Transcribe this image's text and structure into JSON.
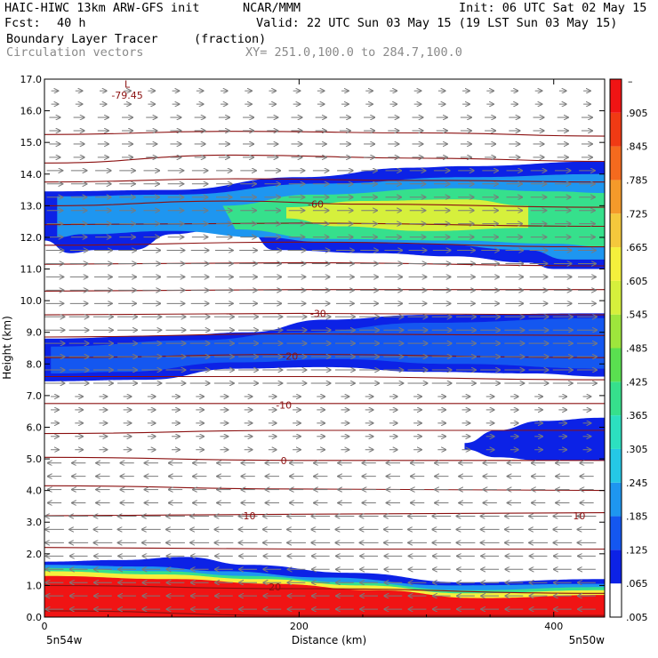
{
  "header": {
    "model": "HAIC-HIWC 13km ARW-GFS init",
    "org": "NCAR/MMM",
    "init": "Init: 06 UTC Sat 02 May 15",
    "fcst_label": "Fcst:",
    "fcst_value": "40 h",
    "valid": "Valid: 22 UTC Sun 03 May 15 (19 LST Sun 03 May 15)",
    "field": "Boundary Layer Tracer",
    "units": "(fraction)",
    "overlay": "Circulation vectors",
    "xy": "XY= 251.0,100.0 to 284.7,100.0"
  },
  "colors": {
    "axis": "#000000",
    "contour": "#8b1010",
    "vector": "#7a7a7a",
    "scale": [
      "#ffffff",
      "#0c22e6",
      "#1457f0",
      "#1e96f0",
      "#25c8e6",
      "#2ce0c0",
      "#36e08c",
      "#5ae050",
      "#9ee63c",
      "#d6f03c",
      "#f5f03c",
      "#f5c83c",
      "#f59a2a",
      "#f56a1e",
      "#f03a14",
      "#f01414"
    ]
  },
  "chart_data": {
    "type": "heatmap",
    "title": "Boundary Layer Tracer",
    "xlabel": "Distance (km)",
    "ylabel": "Height (km)",
    "xlim": [
      0,
      440
    ],
    "ylim": [
      0,
      17
    ],
    "x_ticks": [
      0,
      200,
      400
    ],
    "x_tick_labels": [
      "0",
      "200",
      "400"
    ],
    "y_ticks": [
      0.0,
      1.0,
      2.0,
      3.0,
      4.0,
      5.0,
      6.0,
      7.0,
      8.0,
      9.0,
      10.0,
      11.0,
      12.0,
      13.0,
      14.0,
      15.0,
      16.0,
      17.0
    ],
    "y_tick_labels": [
      "0.0",
      "1.0",
      "2.0",
      "3.0",
      "4.0",
      "5.0",
      "6.0",
      "7.0",
      "8.0",
      "9.0",
      "10.0",
      "11.0",
      "12.0",
      "13.0",
      "14.0",
      "15.0",
      "16.0",
      "17.0"
    ],
    "endpoint_left": "5n54w",
    "endpoint_right": "5n50w",
    "colorbar": {
      "label_top": "–",
      "levels": [
        ".905",
        ".845",
        ".785",
        ".725",
        ".665",
        ".605",
        ".545",
        ".485",
        ".425",
        ".365",
        ".305",
        ".245",
        ".185",
        ".125",
        ".065",
        ".005"
      ]
    },
    "fill_layers": [
      {
        "level": 1,
        "name": "upper-layer-outer",
        "top": [
          [
            0,
            13.45
          ],
          [
            100,
            13.5
          ],
          [
            200,
            13.9
          ],
          [
            290,
            14.2
          ],
          [
            330,
            14.25
          ],
          [
            440,
            14.4
          ]
        ],
        "bottom": [
          [
            440,
            11.0
          ],
          [
            400,
            11.0
          ],
          [
            380,
            11.2
          ],
          [
            320,
            11.4
          ],
          [
            260,
            11.5
          ],
          [
            180,
            11.6
          ],
          [
            160,
            12.2
          ],
          [
            130,
            12.2
          ],
          [
            100,
            12.1
          ],
          [
            70,
            11.6
          ],
          [
            40,
            11.6
          ],
          [
            20,
            11.5
          ],
          [
            0,
            11.9
          ]
        ]
      },
      {
        "level": 3,
        "name": "upper-layer-mid",
        "top": [
          [
            10,
            13.3
          ],
          [
            100,
            13.35
          ],
          [
            220,
            13.7
          ],
          [
            330,
            13.9
          ],
          [
            440,
            14.0
          ]
        ],
        "bottom": [
          [
            440,
            11.3
          ],
          [
            410,
            11.3
          ],
          [
            380,
            11.6
          ],
          [
            300,
            11.8
          ],
          [
            220,
            11.85
          ],
          [
            170,
            12.0
          ],
          [
            100,
            12.2
          ],
          [
            30,
            12.1
          ],
          [
            10,
            12.0
          ]
        ]
      },
      {
        "level": 6,
        "name": "upper-layer-green",
        "top": [
          [
            140,
            13.0
          ],
          [
            210,
            13.35
          ],
          [
            320,
            13.55
          ],
          [
            400,
            13.45
          ],
          [
            440,
            13.4
          ]
        ],
        "bottom": [
          [
            440,
            11.7
          ],
          [
            400,
            11.8
          ],
          [
            320,
            11.9
          ],
          [
            220,
            11.95
          ],
          [
            150,
            12.25
          ]
        ]
      },
      {
        "level": 9,
        "name": "upper-layer-core",
        "top": [
          [
            190,
            12.95
          ],
          [
            250,
            13.15
          ],
          [
            330,
            13.2
          ],
          [
            380,
            13.0
          ]
        ],
        "bottom": [
          [
            380,
            12.3
          ],
          [
            300,
            12.2
          ],
          [
            230,
            12.35
          ],
          [
            190,
            12.6
          ]
        ]
      },
      {
        "level": 1,
        "name": "mid-layer-outer",
        "top": [
          [
            0,
            8.8
          ],
          [
            100,
            8.9
          ],
          [
            160,
            9.0
          ],
          [
            220,
            9.4
          ],
          [
            300,
            9.55
          ],
          [
            440,
            9.6
          ]
        ],
        "bottom": [
          [
            440,
            7.6
          ],
          [
            380,
            7.7
          ],
          [
            300,
            7.75
          ],
          [
            220,
            7.9
          ],
          [
            150,
            7.85
          ],
          [
            80,
            7.5
          ],
          [
            0,
            7.45
          ]
        ]
      },
      {
        "level": 2,
        "name": "mid-layer-inner",
        "top": [
          [
            5,
            8.55
          ],
          [
            120,
            8.75
          ],
          [
            200,
            9.0
          ],
          [
            300,
            9.3
          ],
          [
            440,
            9.45
          ]
        ],
        "bottom": [
          [
            440,
            7.85
          ],
          [
            320,
            8.0
          ],
          [
            230,
            8.15
          ],
          [
            150,
            8.05
          ],
          [
            60,
            7.75
          ],
          [
            5,
            7.7
          ]
        ]
      },
      {
        "level": 1,
        "name": "low-cloud-right",
        "top": [
          [
            330,
            5.5
          ],
          [
            355,
            5.9
          ],
          [
            390,
            6.2
          ],
          [
            440,
            6.3
          ]
        ],
        "bottom": [
          [
            440,
            4.95
          ],
          [
            390,
            4.95
          ],
          [
            355,
            5.05
          ],
          [
            330,
            5.3
          ]
        ]
      },
      {
        "level": 1,
        "name": "boundary-layer-outer",
        "top": [
          [
            0,
            1.75
          ],
          [
            60,
            1.8
          ],
          [
            110,
            1.9
          ],
          [
            160,
            1.65
          ],
          [
            240,
            1.4
          ],
          [
            330,
            1.1
          ],
          [
            440,
            1.2
          ]
        ],
        "bottom": [
          [
            440,
            0
          ],
          [
            0,
            0
          ]
        ]
      },
      {
        "level": 3,
        "name": "boundary-layer-cyan",
        "top": [
          [
            0,
            1.65
          ],
          [
            80,
            1.6
          ],
          [
            140,
            1.45
          ],
          [
            220,
            1.25
          ],
          [
            320,
            1.0
          ],
          [
            440,
            1.05
          ]
        ],
        "bottom": [
          [
            440,
            0
          ],
          [
            0,
            0
          ]
        ]
      },
      {
        "level": 6,
        "name": "boundary-layer-green",
        "top": [
          [
            0,
            1.55
          ],
          [
            90,
            1.45
          ],
          [
            160,
            1.3
          ],
          [
            240,
            1.1
          ],
          [
            330,
            0.85
          ],
          [
            440,
            0.95
          ]
        ],
        "bottom": [
          [
            440,
            0
          ],
          [
            0,
            0
          ]
        ]
      },
      {
        "level": 10,
        "name": "boundary-layer-yellow",
        "top": [
          [
            0,
            1.45
          ],
          [
            90,
            1.35
          ],
          [
            170,
            1.2
          ],
          [
            250,
            1.0
          ],
          [
            330,
            0.75
          ],
          [
            440,
            0.85
          ]
        ],
        "bottom": [
          [
            440,
            0
          ],
          [
            0,
            0
          ]
        ]
      },
      {
        "level": 15,
        "name": "boundary-layer-red",
        "top": [
          [
            0,
            1.3
          ],
          [
            100,
            1.2
          ],
          [
            180,
            1.05
          ],
          [
            260,
            0.85
          ],
          [
            340,
            0.6
          ],
          [
            440,
            0.7
          ]
        ],
        "bottom": [
          [
            440,
            0
          ],
          [
            0,
            0
          ]
        ]
      }
    ],
    "temperature_contours": [
      {
        "level": -80,
        "points": [
          [
            0,
            15.25
          ],
          [
            150,
            15.35
          ],
          [
            300,
            15.3
          ],
          [
            440,
            15.2
          ]
        ]
      },
      {
        "level": -70,
        "points": [
          [
            0,
            14.35
          ],
          [
            150,
            14.6
          ],
          [
            300,
            14.5
          ],
          [
            440,
            14.4
          ]
        ]
      },
      {
        "level": -65,
        "points": [
          [
            0,
            13.75
          ],
          [
            150,
            13.85
          ],
          [
            300,
            13.8
          ],
          [
            440,
            13.75
          ]
        ]
      },
      {
        "level": -60,
        "points": [
          [
            0,
            13.0
          ],
          [
            150,
            13.15
          ],
          [
            250,
            13.05
          ],
          [
            440,
            12.95
          ]
        ]
      },
      {
        "level": -55,
        "points": [
          [
            0,
            12.4
          ],
          [
            200,
            12.45
          ],
          [
            440,
            12.35
          ]
        ]
      },
      {
        "level": -50,
        "points": [
          [
            0,
            11.75
          ],
          [
            200,
            11.85
          ],
          [
            440,
            11.7
          ]
        ]
      },
      {
        "level": -45,
        "points": [
          [
            0,
            11.15
          ],
          [
            200,
            11.2
          ],
          [
            440,
            11.1
          ]
        ]
      },
      {
        "level": -40,
        "points": [
          [
            0,
            10.3
          ],
          [
            200,
            10.35
          ],
          [
            440,
            10.35
          ]
        ]
      },
      {
        "level": -30,
        "points": [
          [
            0,
            9.55
          ],
          [
            200,
            9.6
          ],
          [
            440,
            9.55
          ]
        ]
      },
      {
        "level": -25,
        "points": [
          [
            0,
            8.85
          ],
          [
            200,
            8.95
          ],
          [
            440,
            8.9
          ]
        ]
      },
      {
        "level": -20,
        "points": [
          [
            0,
            8.2
          ],
          [
            200,
            8.3
          ],
          [
            440,
            8.2
          ]
        ]
      },
      {
        "level": -15,
        "points": [
          [
            0,
            7.6
          ],
          [
            200,
            7.6
          ],
          [
            440,
            7.5
          ]
        ]
      },
      {
        "level": -10,
        "points": [
          [
            0,
            6.75
          ],
          [
            200,
            6.75
          ],
          [
            440,
            6.75
          ]
        ]
      },
      {
        "level": -5,
        "points": [
          [
            0,
            5.8
          ],
          [
            200,
            5.9
          ],
          [
            440,
            5.9
          ]
        ]
      },
      {
        "level": 0,
        "points": [
          [
            0,
            5.05
          ],
          [
            200,
            4.95
          ],
          [
            440,
            4.95
          ]
        ]
      },
      {
        "level": 5,
        "points": [
          [
            0,
            4.15
          ],
          [
            200,
            4.05
          ],
          [
            440,
            4.0
          ]
        ]
      },
      {
        "level": 10,
        "points": [
          [
            0,
            3.2
          ],
          [
            200,
            3.25
          ],
          [
            440,
            3.3
          ]
        ]
      },
      {
        "level": 15,
        "points": [
          [
            0,
            2.2
          ],
          [
            200,
            2.15
          ],
          [
            440,
            2.15
          ]
        ]
      },
      {
        "level": 20,
        "points": [
          [
            0,
            1.0
          ],
          [
            200,
            0.9
          ],
          [
            440,
            0.75
          ]
        ]
      },
      {
        "level": 25,
        "points": [
          [
            0,
            0.2
          ],
          [
            200,
            0.05
          ],
          [
            440,
            0.05
          ]
        ]
      }
    ],
    "contour_labels": [
      {
        "text": "L",
        "x": 65,
        "y": 16.85
      },
      {
        "text": "-79.45",
        "x": 65,
        "y": 16.5
      },
      {
        "text": "-60",
        "x": 213,
        "y": 13.05
      },
      {
        "text": "-30",
        "x": 215,
        "y": 9.6
      },
      {
        "text": "-20",
        "x": 193,
        "y": 8.25
      },
      {
        "text": "-10",
        "x": 188,
        "y": 6.7
      },
      {
        "text": "0",
        "x": 188,
        "y": 4.95
      },
      {
        "text": "10",
        "x": 161,
        "y": 3.2
      },
      {
        "text": "10",
        "x": 420,
        "y": 3.2
      },
      {
        "text": "20",
        "x": 181,
        "y": 0.95
      }
    ],
    "vector_field": {
      "x_spacing_km": 19,
      "y_spacing_km": 0.42,
      "bands": [
        {
          "y_min": 16.0,
          "y_max": 17.0,
          "u": 0.35
        },
        {
          "y_min": 14.2,
          "y_max": 16.0,
          "u": 0.55
        },
        {
          "y_min": 12.0,
          "y_max": 14.2,
          "u": 0.8
        },
        {
          "y_min": 9.5,
          "y_max": 12.0,
          "u": 0.9
        },
        {
          "y_min": 7.0,
          "y_max": 9.5,
          "u": 1.0
        },
        {
          "y_min": 5.0,
          "y_max": 7.0,
          "u": 0.4
        },
        {
          "y_min": 3.5,
          "y_max": 5.0,
          "u": -0.7
        },
        {
          "y_min": 2.0,
          "y_max": 3.5,
          "u": -0.95
        },
        {
          "y_min": 0.0,
          "y_max": 2.0,
          "u": -0.9
        }
      ]
    }
  }
}
